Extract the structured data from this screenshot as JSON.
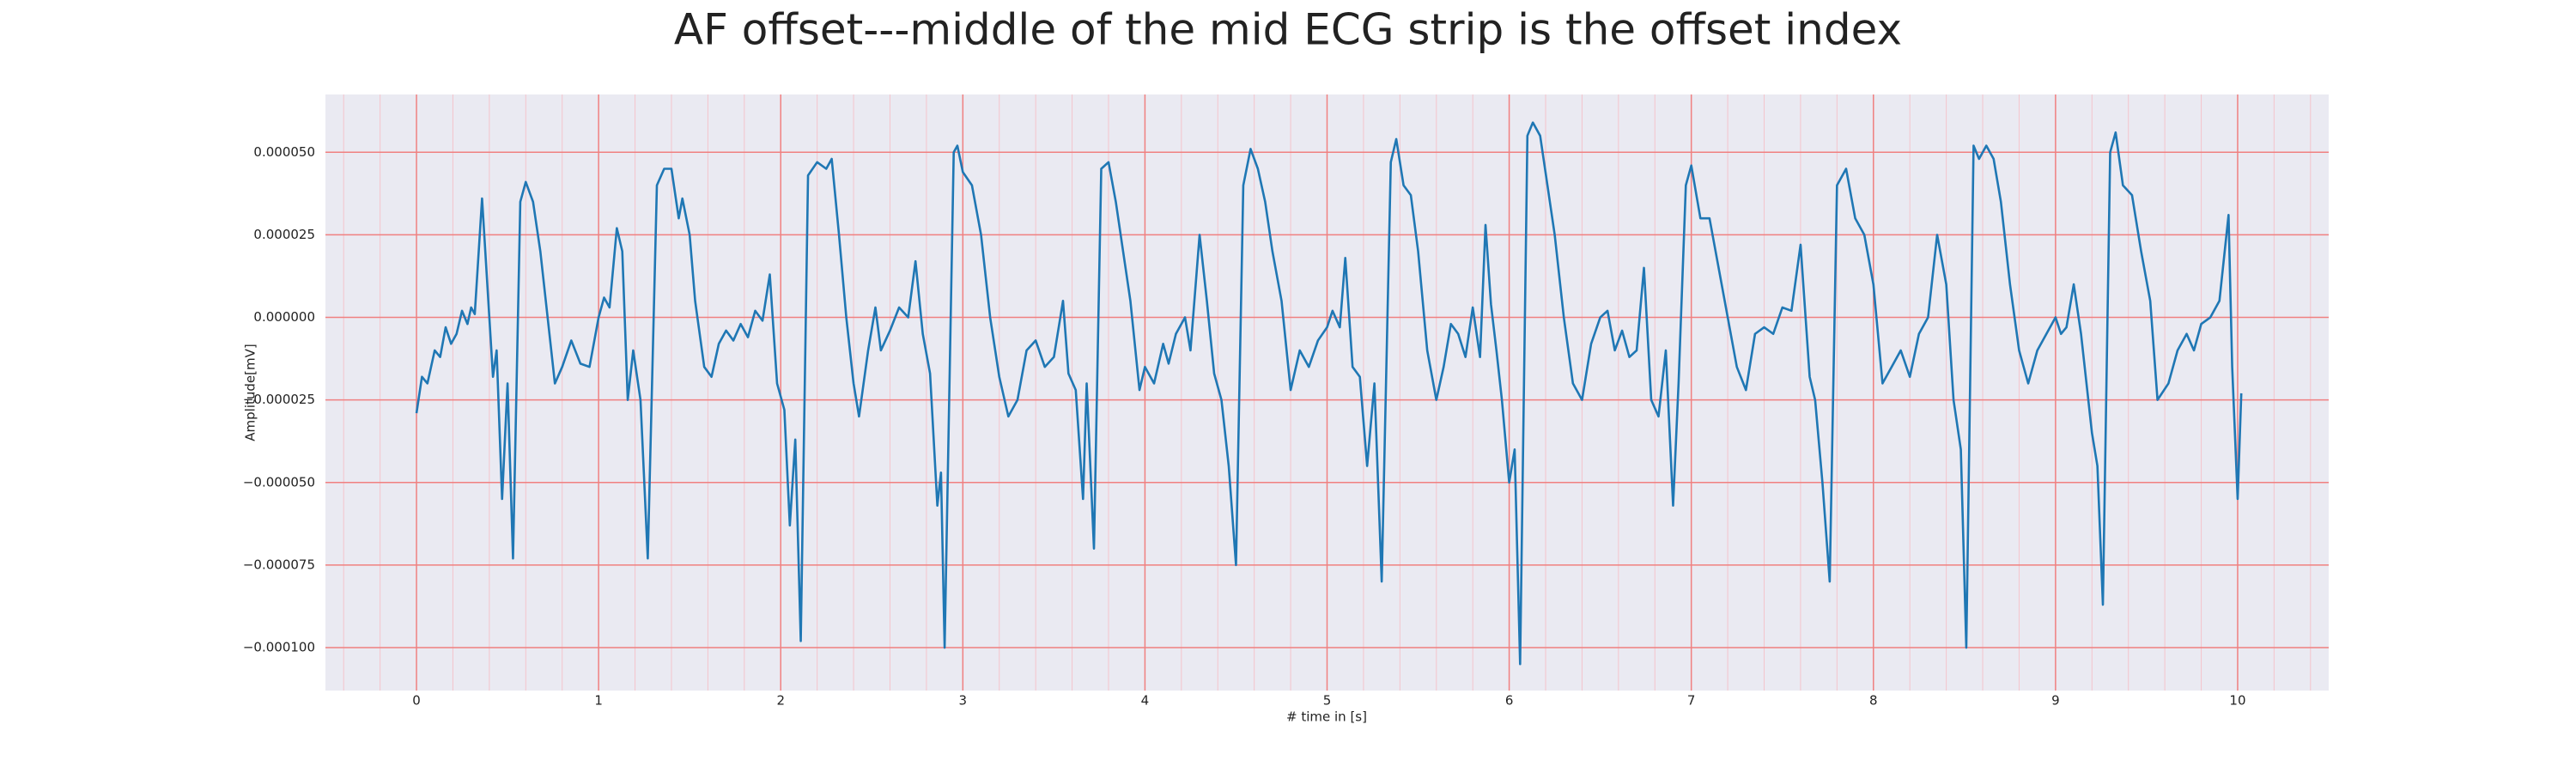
{
  "chart_data": {
    "type": "line",
    "title": "AF offset---middle of the mid ECG strip is the offset index",
    "xlabel": "# time in [s]",
    "ylabel": "Amplitude[mV]",
    "xlim": [
      -0.5,
      10.5
    ],
    "ylim": [
      -0.000113,
      6.75e-05
    ],
    "xticks": [
      0,
      1,
      2,
      3,
      4,
      5,
      6,
      7,
      8,
      9,
      10
    ],
    "yticks": [
      {
        "value": 5e-05,
        "label": "0.000050"
      },
      {
        "value": 2.5e-05,
        "label": "0.000025"
      },
      {
        "value": 0,
        "label": "0.000000"
      },
      {
        "value": -2.5e-05,
        "label": "−0.000025"
      },
      {
        "value": -5e-05,
        "label": "−0.000050"
      },
      {
        "value": -7.5e-05,
        "label": "−0.000075"
      },
      {
        "value": -0.0001,
        "label": "−0.000100"
      }
    ],
    "grid": true,
    "minor_grid": true,
    "grid_color": "#f08080",
    "minor_grid_color": "#f4c4cc",
    "background": "#eaeaf2",
    "color": "#1f77b4",
    "x": [
      0,
      0.03,
      0.06,
      0.1,
      0.13,
      0.16,
      0.19,
      0.22,
      0.25,
      0.28,
      0.3,
      0.32,
      0.36,
      0.4,
      0.42,
      0.44,
      0.47,
      0.5,
      0.53,
      0.57,
      0.6,
      0.64,
      0.68,
      0.72,
      0.76,
      0.8,
      0.85,
      0.9,
      0.95,
      1.0,
      1.03,
      1.06,
      1.1,
      1.13,
      1.16,
      1.19,
      1.23,
      1.27,
      1.32,
      1.36,
      1.4,
      1.44,
      1.46,
      1.5,
      1.53,
      1.58,
      1.62,
      1.66,
      1.7,
      1.74,
      1.78,
      1.82,
      1.86,
      1.9,
      1.94,
      1.98,
      2.02,
      2.05,
      2.08,
      2.11,
      2.15,
      2.2,
      2.25,
      2.28,
      2.32,
      2.36,
      2.4,
      2.43,
      2.48,
      2.52,
      2.55,
      2.6,
      2.65,
      2.7,
      2.74,
      2.78,
      2.82,
      2.86,
      2.88,
      2.9,
      2.95,
      2.97,
      3.0,
      3.05,
      3.1,
      3.15,
      3.2,
      3.25,
      3.3,
      3.35,
      3.4,
      3.45,
      3.5,
      3.55,
      3.58,
      3.62,
      3.66,
      3.68,
      3.72,
      3.76,
      3.8,
      3.84,
      3.88,
      3.92,
      3.97,
      4.0,
      4.05,
      4.1,
      4.13,
      4.17,
      4.22,
      4.25,
      4.3,
      4.34,
      4.38,
      4.42,
      4.46,
      4.5,
      4.54,
      4.58,
      4.62,
      4.66,
      4.7,
      4.75,
      4.8,
      4.85,
      4.9,
      4.95,
      5.0,
      5.03,
      5.07,
      5.1,
      5.14,
      5.18,
      5.22,
      5.26,
      5.3,
      5.35,
      5.38,
      5.42,
      5.46,
      5.5,
      5.55,
      5.6,
      5.64,
      5.68,
      5.72,
      5.76,
      5.8,
      5.84,
      5.87,
      5.9,
      5.93,
      5.96,
      6.0,
      6.03,
      6.06,
      6.1,
      6.13,
      6.17,
      6.21,
      6.25,
      6.3,
      6.35,
      6.4,
      6.45,
      6.5,
      6.54,
      6.58,
      6.62,
      6.66,
      6.7,
      6.74,
      6.78,
      6.82,
      6.86,
      6.9,
      6.93,
      6.97,
      7.0,
      7.05,
      7.1,
      7.15,
      7.2,
      7.25,
      7.3,
      7.35,
      7.4,
      7.45,
      7.5,
      7.55,
      7.6,
      7.65,
      7.68,
      7.72,
      7.76,
      7.8,
      7.85,
      7.9,
      7.95,
      8.0,
      8.05,
      8.1,
      8.15,
      8.2,
      8.25,
      8.3,
      8.35,
      8.4,
      8.44,
      8.48,
      8.51,
      8.55,
      8.58,
      8.62,
      8.66,
      8.7,
      8.75,
      8.8,
      8.85,
      8.9,
      8.95,
      9.0,
      9.03,
      9.06,
      9.1,
      9.14,
      9.17,
      9.2,
      9.23,
      9.26,
      9.3,
      9.33,
      9.37,
      9.42,
      9.47,
      9.52,
      9.56,
      9.62,
      9.67,
      9.72,
      9.76,
      9.8,
      9.85,
      9.9,
      9.95,
      9.97,
      10.0,
      10.02
    ],
    "values": [
      -2.9e-05,
      -1.8e-05,
      -2e-05,
      -1e-05,
      -1.2e-05,
      -3e-06,
      -8e-06,
      -5e-06,
      2e-06,
      -2e-06,
      3e-06,
      1e-06,
      3.6e-05,
      0,
      -1.8e-05,
      -1e-05,
      -5.5e-05,
      -2e-05,
      -7.3e-05,
      3.5e-05,
      4.1e-05,
      3.5e-05,
      2e-05,
      0,
      -2e-05,
      -1.5e-05,
      -7e-06,
      -1.4e-05,
      -1.5e-05,
      0,
      6e-06,
      3e-06,
      2.7e-05,
      2e-05,
      -2.5e-05,
      -1e-05,
      -2.5e-05,
      -7.3e-05,
      4e-05,
      4.5e-05,
      4.5e-05,
      3e-05,
      3.6e-05,
      2.5e-05,
      5e-06,
      -1.5e-05,
      -1.8e-05,
      -8e-06,
      -4e-06,
      -7e-06,
      -2e-06,
      -6e-06,
      2e-06,
      -1e-06,
      1.3e-05,
      -2e-05,
      -2.8e-05,
      -6.3e-05,
      -3.7e-05,
      -9.8e-05,
      4.3e-05,
      4.7e-05,
      4.5e-05,
      4.8e-05,
      2.5e-05,
      0,
      -2e-05,
      -3e-05,
      -1e-05,
      3e-06,
      -1e-05,
      -4e-06,
      3e-06,
      0,
      1.7e-05,
      -5e-06,
      -1.7e-05,
      -5.7e-05,
      -4.7e-05,
      -0.0001,
      5e-05,
      5.2e-05,
      4.4e-05,
      4e-05,
      2.5e-05,
      0,
      -1.8e-05,
      -3e-05,
      -2.5e-05,
      -1e-05,
      -7e-06,
      -1.5e-05,
      -1.2e-05,
      5e-06,
      -1.7e-05,
      -2.2e-05,
      -5.5e-05,
      -2e-05,
      -7e-05,
      4.5e-05,
      4.7e-05,
      3.5e-05,
      2e-05,
      5e-06,
      -2.2e-05,
      -1.5e-05,
      -2e-05,
      -8e-06,
      -1.4e-05,
      -5e-06,
      0,
      -1e-05,
      2.5e-05,
      5e-06,
      -1.7e-05,
      -2.5e-05,
      -4.5e-05,
      -7.5e-05,
      4e-05,
      5.1e-05,
      4.5e-05,
      3.5e-05,
      2e-05,
      5e-06,
      -2.2e-05,
      -1e-05,
      -1.5e-05,
      -7e-06,
      -3e-06,
      2e-06,
      -3e-06,
      1.8e-05,
      -1.5e-05,
      -1.8e-05,
      -4.5e-05,
      -2e-05,
      -8e-05,
      4.7e-05,
      5.4e-05,
      4e-05,
      3.7e-05,
      2e-05,
      -1e-05,
      -2.5e-05,
      -1.5e-05,
      -2e-06,
      -5e-06,
      -1.2e-05,
      3e-06,
      -1.2e-05,
      2.8e-05,
      4e-06,
      -1e-05,
      -2.5e-05,
      -5e-05,
      -4e-05,
      -0.000105,
      5.5e-05,
      5.9e-05,
      5.5e-05,
      4e-05,
      2.5e-05,
      0,
      -2e-05,
      -2.5e-05,
      -8e-06,
      0,
      2e-06,
      -1e-05,
      -4e-06,
      -1.2e-05,
      -1e-05,
      1.5e-05,
      -2.5e-05,
      -3e-05,
      -1e-05,
      -5.7e-05,
      -2e-05,
      4e-05,
      4.6e-05,
      3e-05,
      3e-05,
      1.5e-05,
      0,
      -1.5e-05,
      -2.2e-05,
      -5e-06,
      -3e-06,
      -5e-06,
      3e-06,
      2e-06,
      2.2e-05,
      -1.8e-05,
      -2.5e-05,
      -5e-05,
      -8e-05,
      4e-05,
      4.5e-05,
      3e-05,
      2.5e-05,
      1e-05,
      -2e-05,
      -1.5e-05,
      -1e-05,
      -1.8e-05,
      -5e-06,
      0,
      2.5e-05,
      1e-05,
      -2.5e-05,
      -4e-05,
      -0.0001,
      5.2e-05,
      4.8e-05,
      5.2e-05,
      4.8e-05,
      3.5e-05,
      1e-05,
      -1e-05,
      -2e-05,
      -1e-05,
      -5e-06,
      0,
      -5e-06,
      -3e-06,
      1e-05,
      -5e-06,
      -2e-05,
      -3.5e-05,
      -4.5e-05,
      -8.7e-05,
      5e-05,
      5.6e-05,
      4e-05,
      3.7e-05,
      2e-05,
      5e-06,
      -2.5e-05,
      -2e-05,
      -1e-05,
      -5e-06,
      -1e-05,
      -2e-06,
      0,
      5e-06,
      3.1e-05,
      -1.5e-05,
      -5.5e-05,
      -2.3e-05
    ]
  }
}
